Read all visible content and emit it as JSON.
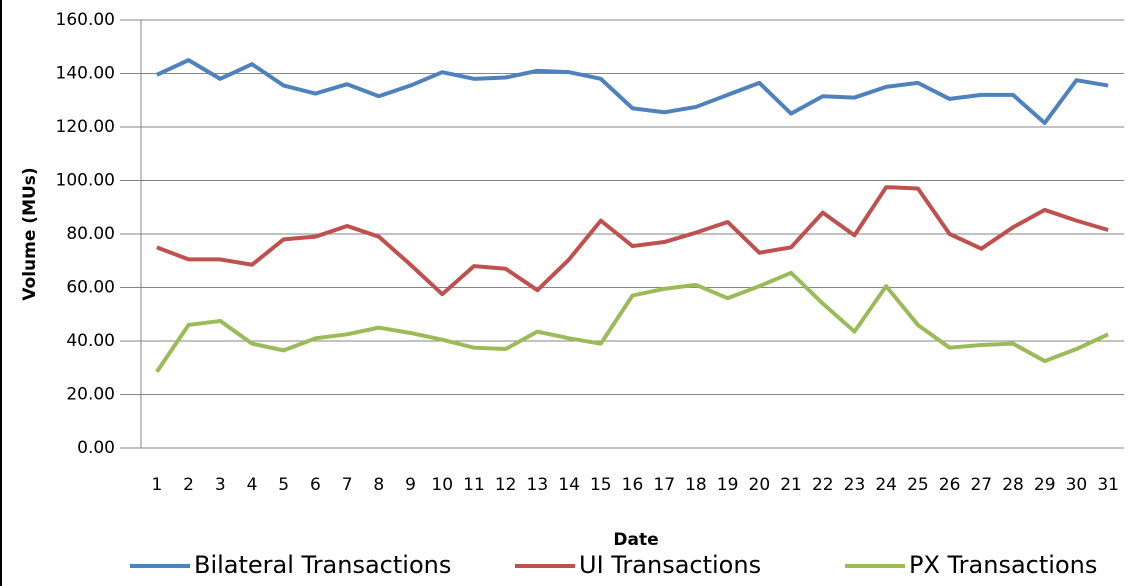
{
  "chart_data": {
    "type": "line",
    "y_label": "Volume (MUs)",
    "x_label": "Date",
    "categories": [
      "1",
      "2",
      "3",
      "4",
      "5",
      "6",
      "7",
      "8",
      "9",
      "10",
      "11",
      "12",
      "13",
      "14",
      "15",
      "16",
      "17",
      "18",
      "19",
      "20",
      "21",
      "22",
      "23",
      "24",
      "25",
      "26",
      "27",
      "28",
      "29",
      "30",
      "31"
    ],
    "series": [
      {
        "name": "Bilateral Transactions",
        "color": "#4f81bd",
        "values": [
          139.5,
          145,
          138,
          143.5,
          135.5,
          132.5,
          136,
          131.5,
          135.5,
          140.5,
          138,
          138.5,
          141,
          140.5,
          138,
          127,
          125.5,
          127.5,
          132,
          136.5,
          125,
          131.5,
          131,
          135,
          136.5,
          130.5,
          132,
          132,
          121.5,
          137.5,
          135.5
        ]
      },
      {
        "name": "UI Transactions",
        "color": "#c0504d",
        "values": [
          75,
          70.5,
          70.5,
          68.5,
          78,
          79,
          83,
          79,
          68.5,
          57.5,
          68,
          67,
          59,
          70.5,
          85,
          75.5,
          77,
          80.5,
          84.5,
          73,
          75,
          88,
          79.5,
          97.5,
          97,
          80,
          74.5,
          82.5,
          89,
          85,
          81.5
        ]
      },
      {
        "name": "PX Transactions",
        "color": "#9bbb59",
        "values": [
          28.5,
          46,
          47.5,
          39,
          36.5,
          41,
          42.5,
          45,
          43,
          40.5,
          37.5,
          37,
          43.5,
          41,
          39,
          57,
          59.5,
          61,
          56,
          60.5,
          65.5,
          54,
          43.5,
          60.5,
          46,
          37.5,
          38.5,
          39,
          32.5,
          37,
          42.5
        ]
      }
    ],
    "ylim": [
      0,
      160
    ],
    "yticks": [
      {
        "value": 0,
        "label": "0.00"
      },
      {
        "value": 20,
        "label": "20.00"
      },
      {
        "value": 40,
        "label": "40.00"
      },
      {
        "value": 60,
        "label": "60.00"
      },
      {
        "value": 80,
        "label": "80.00"
      },
      {
        "value": 100,
        "label": "100.00"
      },
      {
        "value": 120,
        "label": "120.00"
      },
      {
        "value": 140,
        "label": "140.00"
      },
      {
        "value": 160,
        "label": "160.00"
      }
    ],
    "grid": true,
    "legend": "bottom"
  }
}
